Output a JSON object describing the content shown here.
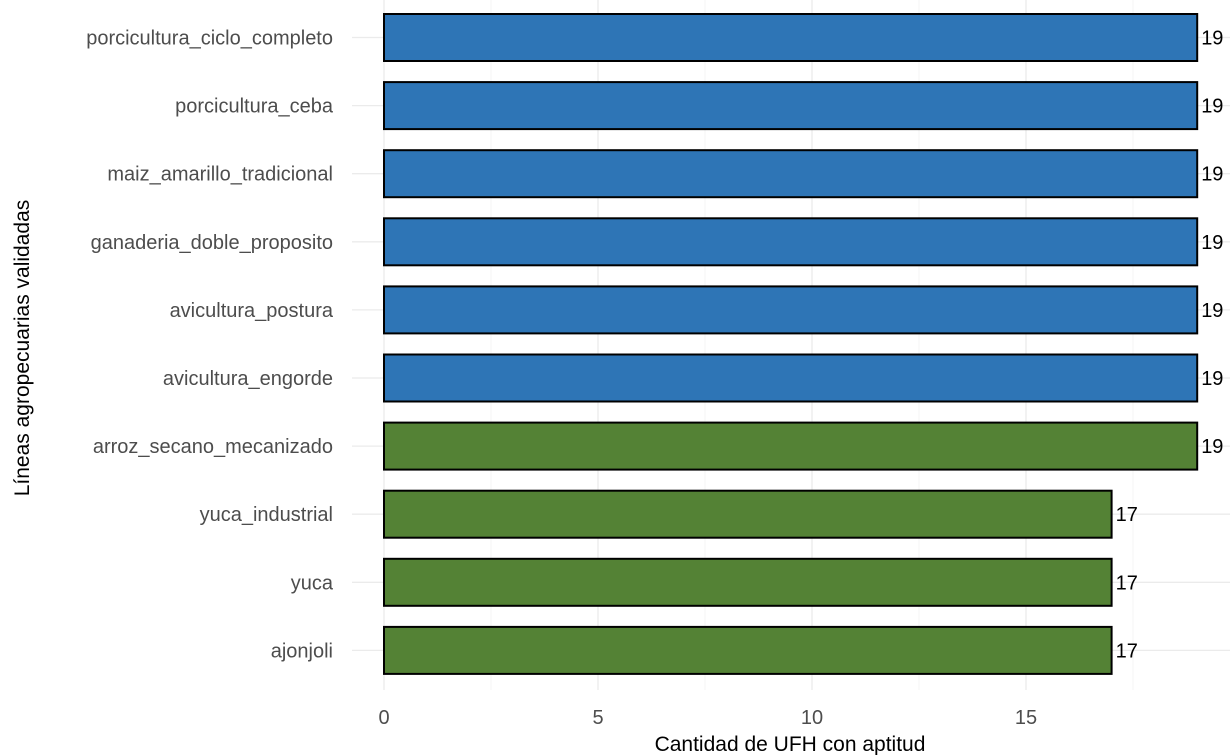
{
  "chart_data": {
    "type": "bar",
    "orientation": "horizontal",
    "xlabel": "Cantidad de UFH con aptitud",
    "ylabel": "Líneas agropecuarias validadas",
    "xlim": [
      0,
      19
    ],
    "x_ticks": [
      0,
      5,
      10,
      15
    ],
    "grid": true,
    "categories": [
      "porcicultura_ciclo_completo",
      "porcicultura_ceba",
      "maiz_amarillo_tradicional",
      "ganaderia_doble_proposito",
      "avicultura_postura",
      "avicultura_engorde",
      "arroz_secano_mecanizado",
      "yuca_industrial",
      "yuca",
      "ajonjoli"
    ],
    "values": [
      19,
      19,
      19,
      19,
      19,
      19,
      19,
      17,
      17,
      17
    ],
    "bar_colors": [
      "#2E75B6",
      "#2E75B6",
      "#2E75B6",
      "#2E75B6",
      "#2E75B6",
      "#2E75B6",
      "#548235",
      "#548235",
      "#548235",
      "#548235"
    ]
  }
}
